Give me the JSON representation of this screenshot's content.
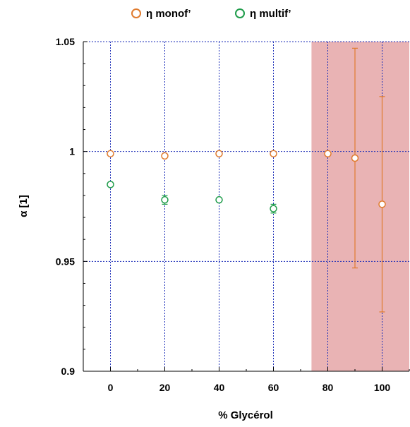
{
  "chart_data": {
    "type": "scatter",
    "xlabel": "% Glycérol",
    "ylabel": "α [1]",
    "xlim": [
      -10,
      110
    ],
    "ylim": [
      0.9,
      1.05
    ],
    "x_ticks": [
      {
        "value": 0,
        "label": "0"
      },
      {
        "value": 20,
        "label": "20"
      },
      {
        "value": 40,
        "label": "40"
      },
      {
        "value": 60,
        "label": "60"
      },
      {
        "value": 80,
        "label": "80"
      },
      {
        "value": 100,
        "label": "100"
      }
    ],
    "y_ticks": [
      {
        "value": 0.9,
        "label": "0.9"
      },
      {
        "value": 0.95,
        "label": "0.95"
      },
      {
        "value": 1.0,
        "label": "1"
      },
      {
        "value": 1.05,
        "label": "1.05"
      }
    ],
    "grid": true,
    "legend_position": "top",
    "shaded_region": {
      "x_from": 74,
      "x_to": 110,
      "color": "#e9b3b4"
    },
    "series": [
      {
        "name": "η monof’",
        "color": "#e07b2e",
        "marker": "hollow-circle",
        "points": [
          {
            "x": 0,
            "y": 0.999,
            "err": 0.0
          },
          {
            "x": 20,
            "y": 0.998,
            "err": 0.0
          },
          {
            "x": 40,
            "y": 0.999,
            "err": 0.0
          },
          {
            "x": 60,
            "y": 0.999,
            "err": 0.0
          },
          {
            "x": 80,
            "y": 0.999,
            "err": 0.0
          },
          {
            "x": 90,
            "y": 0.997,
            "err": 0.05
          },
          {
            "x": 100,
            "y": 0.976,
            "err": 0.049
          }
        ]
      },
      {
        "name": "η multif’",
        "color": "#1e9c4a",
        "marker": "hollow-circle",
        "points": [
          {
            "x": 0,
            "y": 0.985,
            "err": 0.0
          },
          {
            "x": 20,
            "y": 0.978,
            "err": 0.002
          },
          {
            "x": 40,
            "y": 0.978,
            "err": 0.0
          },
          {
            "x": 60,
            "y": 0.974,
            "err": 0.002
          }
        ]
      }
    ],
    "colors": {
      "grid": "#1b2db8",
      "axis": "#000000"
    }
  }
}
